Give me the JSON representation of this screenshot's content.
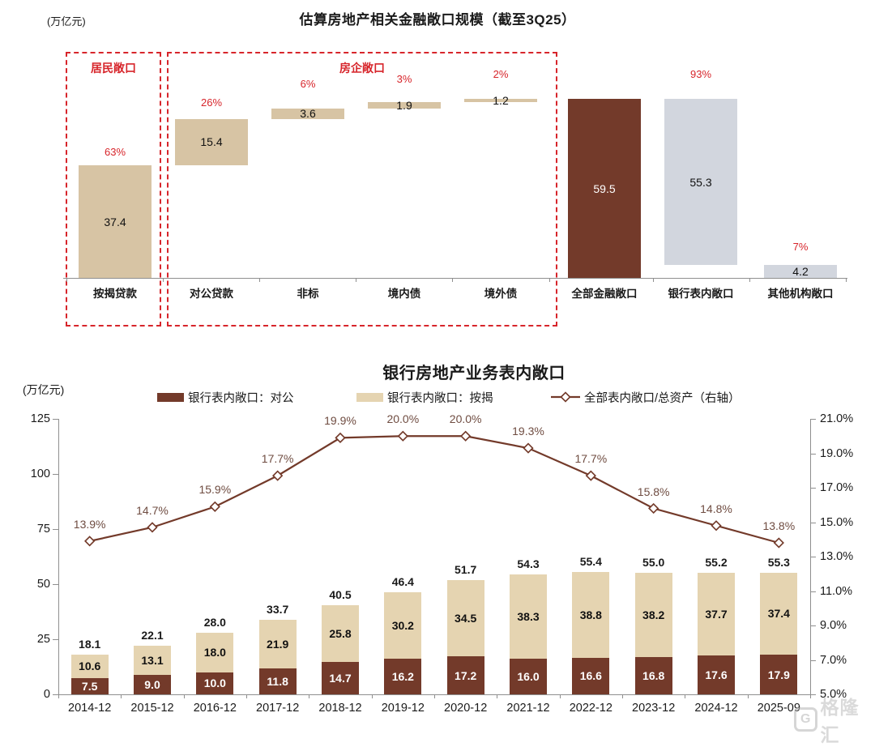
{
  "colors": {
    "tan": "#D7C4A4",
    "tan_light": "#E5D4B1",
    "brown": "#733A2A",
    "gray": "#D2D6DE",
    "red": "#D7252B",
    "line": "#733A2A",
    "ratio_label": "#6F4C41",
    "axis": "#8F8F8F"
  },
  "watermark": {
    "logo_letter": "G",
    "text": "格隆汇"
  },
  "chart_data": [
    {
      "type": "bar",
      "subtype": "waterfall",
      "title": "估算房地产相关金融敞口规模（截至3Q25）",
      "unit_label": "(万亿元)",
      "ylim": [
        0,
        59.5
      ],
      "grid": false,
      "group_boxes": [
        {
          "label": "居民敞口"
        },
        {
          "label": "房企敞口"
        }
      ],
      "bars": [
        {
          "label": "按揭贷款",
          "value": 37.4,
          "pct": "63%",
          "start": 0,
          "end": 37.4,
          "color": "tan"
        },
        {
          "label": "对公贷款",
          "value": 15.4,
          "pct": "26%",
          "start": 37.4,
          "end": 52.8,
          "color": "tan"
        },
        {
          "label": "非标",
          "value": 3.6,
          "pct": "6%",
          "start": 52.8,
          "end": 56.4,
          "color": "tan"
        },
        {
          "label": "境内债",
          "value": 1.9,
          "pct": "3%",
          "start": 56.4,
          "end": 58.3,
          "color": "tan"
        },
        {
          "label": "境外债",
          "value": 1.2,
          "pct": "2%",
          "start": 58.3,
          "end": 59.5,
          "color": "tan"
        },
        {
          "label": "全部金融敞口",
          "value": 59.5,
          "pct": "",
          "start": 0,
          "end": 59.5,
          "color": "brown"
        },
        {
          "label": "银行表内敞口",
          "value": 55.3,
          "pct": "93%",
          "start": 4.2,
          "end": 59.5,
          "color": "gray"
        },
        {
          "label": "其他机构敞口",
          "value": 4.2,
          "pct": "7%",
          "start": 0,
          "end": 4.2,
          "color": "gray"
        }
      ]
    },
    {
      "type": "bar",
      "subtype": "stacked-bar-with-line",
      "title": "银行房地产业务表内敞口",
      "unit_label": "(万亿元)",
      "grid": false,
      "legend_position": "top",
      "legend": [
        {
          "label": "银行表内敞口：对公",
          "swatch": "brown"
        },
        {
          "label": "银行表内敞口：按揭",
          "swatch": "tan_light"
        },
        {
          "label": "全部表内敞口/总资产（右轴）",
          "swatch": "line"
        }
      ],
      "categories": [
        "2014-12",
        "2015-12",
        "2016-12",
        "2017-12",
        "2018-12",
        "2019-12",
        "2020-12",
        "2021-12",
        "2022-12",
        "2023-12",
        "2024-12",
        "2025-09"
      ],
      "series": [
        {
          "name": "银行表内敞口：对公",
          "type": "bar",
          "color": "brown",
          "values": [
            7.5,
            9.0,
            10.0,
            11.8,
            14.7,
            16.2,
            17.2,
            16.0,
            16.6,
            16.8,
            17.6,
            17.9
          ]
        },
        {
          "name": "银行表内敞口：按揭",
          "type": "bar",
          "color": "tan_light",
          "values": [
            10.6,
            13.1,
            18.0,
            21.9,
            25.8,
            30.2,
            34.5,
            38.3,
            38.8,
            38.2,
            37.7,
            37.4
          ]
        },
        {
          "name": "全部表内敞口/总资产（右轴）",
          "type": "line",
          "axis": "right",
          "color": "line",
          "values": [
            13.9,
            14.7,
            15.9,
            17.7,
            19.9,
            20.0,
            20.0,
            19.3,
            17.7,
            15.8,
            14.8,
            13.8
          ]
        }
      ],
      "totals": [
        18.1,
        22.1,
        28.0,
        33.7,
        40.5,
        46.4,
        51.7,
        54.3,
        55.4,
        55.0,
        55.2,
        55.3
      ],
      "left_axis": {
        "min": 0,
        "max": 125,
        "tick_labels": [
          "0",
          "25",
          "50",
          "75",
          "100",
          "125"
        ]
      },
      "right_axis": {
        "min": 5,
        "max": 21,
        "tick_labels": [
          "5.0%",
          "7.0%",
          "9.0%",
          "11.0%",
          "13.0%",
          "15.0%",
          "17.0%",
          "19.0%",
          "21.0%"
        ]
      }
    }
  ]
}
